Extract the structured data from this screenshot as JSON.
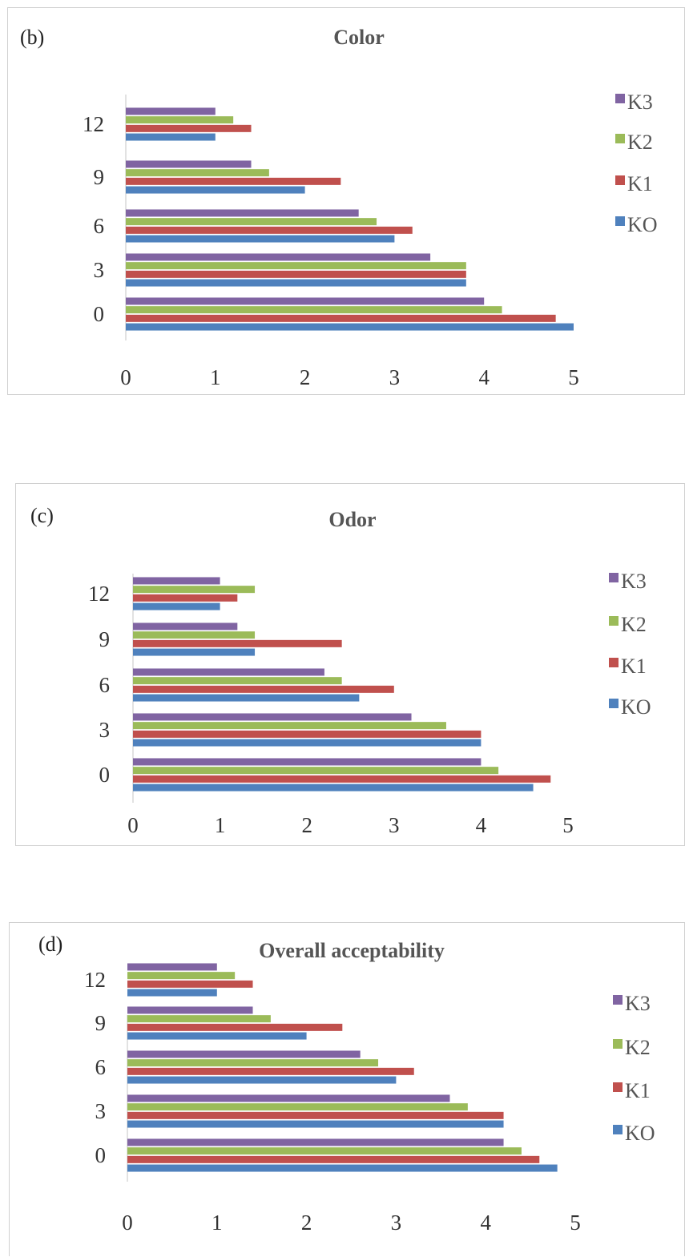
{
  "colors": {
    "KO": "#4F81BD",
    "K1": "#C0504D",
    "K2": "#9BBB59",
    "K3": "#8064A2"
  },
  "chart_data": [
    {
      "type": "bar",
      "orientation": "horizontal",
      "panel_label": "(b)",
      "title": "Color",
      "categories": [
        "0",
        "3",
        "6",
        "9",
        "12"
      ],
      "series": [
        {
          "name": "KO",
          "values": [
            5.0,
            3.8,
            3.0,
            2.0,
            1.0
          ]
        },
        {
          "name": "K1",
          "values": [
            4.8,
            3.8,
            3.2,
            2.4,
            1.4
          ]
        },
        {
          "name": "K2",
          "values": [
            4.2,
            3.8,
            2.8,
            1.6,
            1.2
          ]
        },
        {
          "name": "K3",
          "values": [
            4.0,
            3.4,
            2.6,
            1.4,
            1.0
          ]
        }
      ],
      "xticks": [
        "0",
        "1",
        "2",
        "3",
        "4",
        "5"
      ],
      "xlim": [
        0,
        5
      ],
      "legend_order": [
        "K3",
        "K2",
        "K1",
        "KO"
      ],
      "legend_position": "right",
      "grid": false
    },
    {
      "type": "bar",
      "orientation": "horizontal",
      "panel_label": "(c)",
      "title": "Odor",
      "categories": [
        "0",
        "3",
        "6",
        "9",
        "12"
      ],
      "series": [
        {
          "name": "KO",
          "values": [
            4.6,
            4.0,
            2.6,
            1.4,
            1.0
          ]
        },
        {
          "name": "K1",
          "values": [
            4.8,
            4.0,
            3.0,
            2.4,
            1.2
          ]
        },
        {
          "name": "K2",
          "values": [
            4.2,
            3.6,
            2.4,
            1.4,
            1.4
          ]
        },
        {
          "name": "K3",
          "values": [
            4.0,
            3.2,
            2.2,
            1.2,
            1.0
          ]
        }
      ],
      "xticks": [
        "0",
        "1",
        "2",
        "3",
        "4",
        "5"
      ],
      "xlim": [
        0,
        5
      ],
      "legend_order": [
        "K3",
        "K2",
        "K1",
        "KO"
      ],
      "legend_position": "right",
      "grid": false
    },
    {
      "type": "bar",
      "orientation": "horizontal",
      "panel_label": "(d)",
      "title": "Overall acceptability",
      "categories": [
        "0",
        "3",
        "6",
        "9",
        "12"
      ],
      "series": [
        {
          "name": "KO",
          "values": [
            4.8,
            4.2,
            3.0,
            2.0,
            1.0
          ]
        },
        {
          "name": "K1",
          "values": [
            4.6,
            4.2,
            3.2,
            2.4,
            1.4
          ]
        },
        {
          "name": "K2",
          "values": [
            4.4,
            3.8,
            2.8,
            1.6,
            1.2
          ]
        },
        {
          "name": "K3",
          "values": [
            4.2,
            3.6,
            2.6,
            1.4,
            1.0
          ]
        }
      ],
      "xticks": [
        "0",
        "1",
        "2",
        "3",
        "4",
        "5"
      ],
      "xlim": [
        0,
        5
      ],
      "legend_order": [
        "K3",
        "K2",
        "K1",
        "KO"
      ],
      "legend_position": "right",
      "grid": false
    }
  ]
}
